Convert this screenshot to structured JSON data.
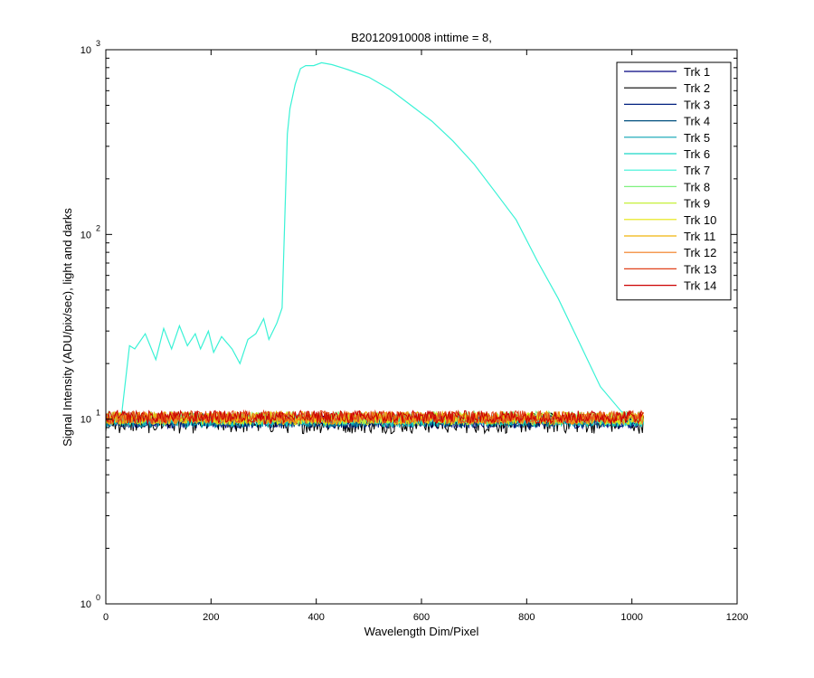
{
  "chart_data": {
    "type": "line",
    "title": "B20120910008 inttime = 8,",
    "xlabel": "Wavelength Dim/Pixel",
    "ylabel": "Signal Intensity (ADU/pix/sec), light and darks",
    "xlim": [
      0,
      1200
    ],
    "ylim": [
      1,
      1000
    ],
    "yscale": "log",
    "x_ticks": [
      "0",
      "200",
      "400",
      "600",
      "800",
      "1000",
      "1200"
    ],
    "y_ticks": [
      {
        "base": "10",
        "exp": "0"
      },
      {
        "base": "10",
        "exp": "1"
      },
      {
        "base": "10",
        "exp": "2"
      },
      {
        "base": "10",
        "exp": "3"
      }
    ],
    "grid": false,
    "legend_position": "top-right",
    "series": [
      {
        "name": "Trk 1",
        "color": "#00007f",
        "x": [
          0,
          1023
        ],
        "y": [
          9.7,
          9.7
        ]
      },
      {
        "name": "Trk 2",
        "color": "#000000",
        "x": [
          0,
          1023
        ],
        "y": [
          9.6,
          9.6
        ]
      },
      {
        "name": "Trk 3",
        "color": "#00207f",
        "x": [
          0,
          1023
        ],
        "y": [
          9.7,
          9.7
        ]
      },
      {
        "name": "Trk 4",
        "color": "#004f7f",
        "x": [
          0,
          1023
        ],
        "y": [
          9.8,
          9.8
        ]
      },
      {
        "name": "Trk 5",
        "color": "#0aa3b3",
        "x": [
          0,
          1023
        ],
        "y": [
          9.8,
          9.8
        ]
      },
      {
        "name": "Trk 6",
        "color": "#19d6c6",
        "x": [
          0,
          1023
        ],
        "y": [
          9.9,
          9.9
        ]
      },
      {
        "name": "Trk 7",
        "color": "#3af2d6",
        "x": [
          0,
          20,
          30,
          45,
          55,
          75,
          95,
          110,
          125,
          140,
          155,
          170,
          180,
          195,
          205,
          220,
          240,
          255,
          270,
          285,
          300,
          310,
          325,
          335,
          345,
          350,
          360,
          370,
          380,
          395,
          410,
          430,
          460,
          500,
          540,
          580,
          620,
          660,
          700,
          740,
          780,
          820,
          860,
          900,
          940,
          980,
          1000,
          1023
        ],
        "y": [
          10,
          10,
          10.5,
          25,
          24,
          29,
          21,
          31,
          24,
          32,
          25,
          29,
          24,
          30,
          23,
          28,
          24,
          20,
          27,
          29,
          35,
          27,
          33,
          40,
          350,
          480,
          650,
          790,
          820,
          820,
          850,
          830,
          780,
          710,
          610,
          500,
          410,
          320,
          240,
          170,
          120,
          72,
          45,
          26,
          15,
          11,
          10.3,
          10
        ]
      },
      {
        "name": "Trk 8",
        "color": "#7ff27f",
        "x": [
          0,
          1023
        ],
        "y": [
          10.2,
          10.2
        ]
      },
      {
        "name": "Trk 9",
        "color": "#c6f03a",
        "x": [
          0,
          1023
        ],
        "y": [
          10.1,
          10.1
        ]
      },
      {
        "name": "Trk 10",
        "color": "#e6e60a",
        "x": [
          0,
          1023
        ],
        "y": [
          10.1,
          10.1
        ]
      },
      {
        "name": "Trk 11",
        "color": "#f0b30a",
        "x": [
          0,
          1023
        ],
        "y": [
          10.2,
          10.2
        ]
      },
      {
        "name": "Trk 12",
        "color": "#f07a1a",
        "x": [
          0,
          1023
        ],
        "y": [
          10.2,
          10.2
        ]
      },
      {
        "name": "Trk 13",
        "color": "#e0401a",
        "x": [
          0,
          1023
        ],
        "y": [
          10.3,
          10.3
        ]
      },
      {
        "name": "Trk 14",
        "color": "#cc0000",
        "x": [
          0,
          1023
        ],
        "y": [
          10.3,
          10.3
        ]
      }
    ]
  }
}
